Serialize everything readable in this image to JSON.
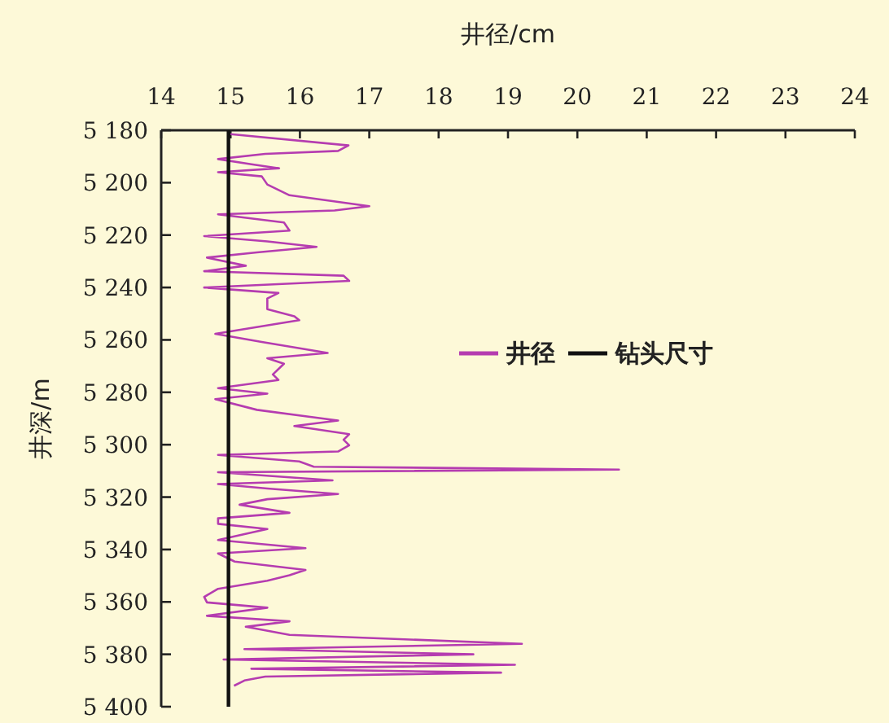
{
  "chart_data": {
    "type": "line",
    "xlabel": "井径/cm",
    "ylabel": "井深/m",
    "xlim": [
      14,
      24
    ],
    "xticks": [
      14,
      15,
      16,
      17,
      18,
      19,
      20,
      21,
      22,
      23,
      24
    ],
    "ylim": [
      5400,
      5180
    ],
    "yticks": [
      {
        "value": 5180,
        "label": "5 180"
      },
      {
        "value": 5200,
        "label": "5 200"
      },
      {
        "value": 5220,
        "label": "5 220"
      },
      {
        "value": 5240,
        "label": "5 240"
      },
      {
        "value": 5260,
        "label": "5 260"
      },
      {
        "value": 5280,
        "label": "5 280"
      },
      {
        "value": 5300,
        "label": "5 300"
      },
      {
        "value": 5320,
        "label": "5 320"
      },
      {
        "value": 5340,
        "label": "5 340"
      },
      {
        "value": 5360,
        "label": "5 360"
      },
      {
        "value": 5380,
        "label": "5 380"
      },
      {
        "value": 5400,
        "label": "5 400"
      }
    ],
    "legend": "right",
    "grid": false,
    "marker": "none",
    "series": [
      {
        "name": "井径",
        "color": "#b53cb0",
        "x": [
          15.0,
          16.7,
          16.55,
          15.5,
          14.82,
          15.3,
          15.7,
          14.82,
          15.45,
          15.53,
          15.85,
          17.0,
          16.5,
          14.82,
          15.77,
          15.85,
          14.62,
          15.53,
          16.24,
          15.38,
          14.66,
          15.22,
          14.62,
          16.63,
          16.71,
          14.62,
          15.69,
          15.53,
          15.53,
          15.92,
          15.99,
          14.78,
          15.45,
          16.4,
          15.53,
          15.77,
          15.61,
          15.69,
          14.82,
          15.53,
          14.78,
          15.38,
          16.55,
          15.92,
          16.71,
          16.63,
          16.71,
          16.55,
          14.82,
          15.99,
          16.2,
          20.6,
          14.82,
          16.47,
          14.82,
          15.53,
          16.55,
          15.53,
          15.13,
          15.85,
          14.82,
          14.82,
          15.53,
          14.82,
          16.08,
          14.82,
          15.06,
          16.08,
          15.85,
          15.53,
          14.82,
          14.62,
          14.66,
          15.53,
          14.66,
          15.85,
          15.22,
          15.85,
          19.2,
          15.2,
          18.5,
          14.9,
          19.1,
          15.3,
          18.9,
          15.5,
          15.2,
          15.05
        ],
        "values": [
          5181.5,
          5185.8,
          5187.9,
          5189,
          5191,
          5193,
          5194.5,
          5196,
          5197.6,
          5200.7,
          5204.8,
          5209,
          5210.6,
          5212.1,
          5215.2,
          5218.3,
          5220.4,
          5222.4,
          5224.5,
          5226.6,
          5228.6,
          5231.7,
          5233.8,
          5235.5,
          5237.5,
          5240,
          5242.1,
          5244.2,
          5248.3,
          5251,
          5252.5,
          5257.7,
          5260.8,
          5265,
          5267,
          5269.1,
          5273.2,
          5275.3,
          5278.4,
          5280.5,
          5282.6,
          5286.7,
          5290.8,
          5292.9,
          5296,
          5298.1,
          5300.2,
          5302.6,
          5303.9,
          5306.4,
          5308.4,
          5309.5,
          5310.5,
          5313.6,
          5315,
          5316.7,
          5318.8,
          5320.8,
          5322.9,
          5326,
          5328.1,
          5330.2,
          5332.2,
          5336.4,
          5339.5,
          5341.5,
          5344.6,
          5347.8,
          5349.8,
          5351.9,
          5355,
          5358.1,
          5360.2,
          5362.2,
          5365.3,
          5367.4,
          5369.5,
          5372.6,
          5376,
          5378,
          5380,
          5382,
          5384,
          5385.5,
          5387,
          5388.5,
          5390,
          5392
        ]
      }
    ],
    "ref_lines": [
      {
        "axis": "x",
        "value": 14.97,
        "label": "钻头尺寸",
        "color": "#111111",
        "line_style": "solid"
      }
    ]
  }
}
